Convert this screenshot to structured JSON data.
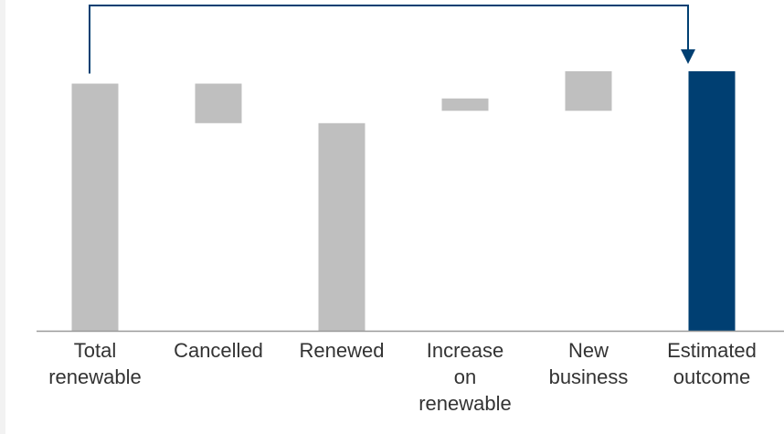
{
  "chart_data": {
    "type": "bar",
    "subtype": "waterfall",
    "categories": [
      [
        "Total",
        "renewable"
      ],
      [
        "Cancelled"
      ],
      [
        "Renewed"
      ],
      [
        "Increase",
        "on",
        "renewable"
      ],
      [
        "New",
        "business"
      ],
      [
        "Estimated",
        "outcome"
      ]
    ],
    "steps": [
      {
        "kind": "total",
        "start": 0,
        "end": 100
      },
      {
        "kind": "decrease",
        "start": 100,
        "end": 84
      },
      {
        "kind": "subtotal",
        "start": 0,
        "end": 84
      },
      {
        "kind": "increase",
        "start": 89,
        "end": 94
      },
      {
        "kind": "increase",
        "start": 89,
        "end": 105
      },
      {
        "kind": "total",
        "start": 0,
        "end": 105
      }
    ],
    "ylim": [
      0,
      105
    ],
    "grid": false,
    "legend": "none",
    "connector": {
      "from": 0,
      "to": 5,
      "style": "arrow-above"
    },
    "colors": {
      "step": "#bfbfbf",
      "outcome": "#003f72",
      "axis": "#999999",
      "connector": "#003f72",
      "label": "#333333"
    }
  }
}
